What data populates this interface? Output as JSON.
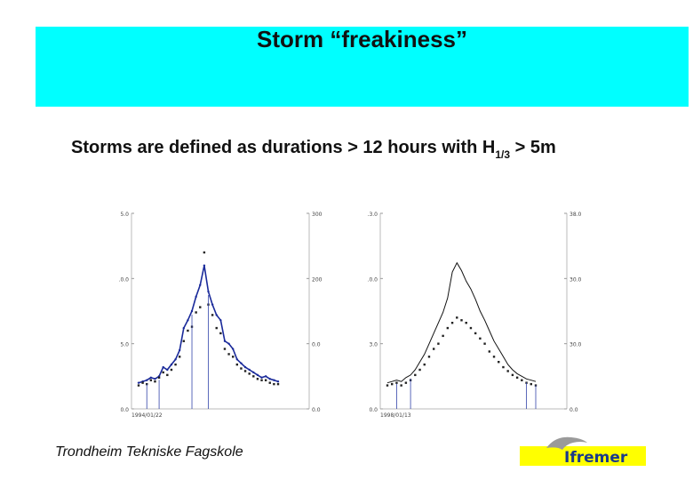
{
  "slide": {
    "title": "Storm “freakiness”",
    "subtitle_main": "Storms are defined as durations > 12 hours with ",
    "subtitle_sym": "H",
    "subtitle_sub": "1/3",
    "subtitle_tail": " > 5m",
    "footer": "Trondheim Tekniske Fagskole",
    "logo_text": "Ifremer",
    "colors": {
      "title_band": "#00ffff",
      "series_blue": "#1a2a9a",
      "logo_yellow": "#ffff00",
      "logo_text": "#1a3a8a"
    }
  },
  "chart_data": [
    {
      "type": "line",
      "panel": "left",
      "left_ticks": [
        "5.0",
        ".0.0",
        "5.0",
        "0.0"
      ],
      "right_ticks": [
        "300",
        "200",
        "0.0",
        "0.0"
      ],
      "x_label": "1994/01/22",
      "series": [
        {
          "color": "#1a2a9a",
          "values": [
            2.0,
            2.1,
            2.2,
            2.4,
            2.3,
            2.5,
            3.2,
            3.0,
            3.4,
            3.8,
            4.5,
            6.2,
            6.8,
            7.5,
            8.6,
            9.5,
            11.0,
            9.0,
            8.0,
            7.2,
            6.8,
            5.2,
            5.0,
            4.6,
            3.8,
            3.5,
            3.2,
            3.0,
            2.8,
            2.6,
            2.4,
            2.5,
            2.3,
            2.2,
            2.1
          ]
        },
        {
          "markers": true,
          "values": [
            1.8,
            2.0,
            1.9,
            2.2,
            2.1,
            2.4,
            2.8,
            2.6,
            3.0,
            3.4,
            4.0,
            5.2,
            6.0,
            6.3,
            7.4,
            7.8,
            12.0,
            8.0,
            7.2,
            6.2,
            5.8,
            4.6,
            4.2,
            4.0,
            3.4,
            3.1,
            2.9,
            2.7,
            2.5,
            2.3,
            2.2,
            2.2,
            2.0,
            1.9,
            1.9
          ]
        }
      ],
      "spikes": [
        2,
        5,
        13,
        17
      ]
    },
    {
      "type": "line",
      "panel": "right",
      "left_ticks": [
        ".3.0",
        ".0.0",
        "3.0",
        "0.0"
      ],
      "right_ticks": [
        "38.0",
        "30.0",
        "30.0",
        "0.0"
      ],
      "x_label": "1998/01/13",
      "series": [
        {
          "color": "#111111",
          "values": [
            2.0,
            2.1,
            2.2,
            2.1,
            2.4,
            2.6,
            3.0,
            3.6,
            4.2,
            5.0,
            5.8,
            6.6,
            7.4,
            8.5,
            10.5,
            11.2,
            10.6,
            9.8,
            9.2,
            8.4,
            7.5,
            6.8,
            6.0,
            5.2,
            4.6,
            4.0,
            3.4,
            3.0,
            2.7,
            2.5,
            2.3,
            2.2,
            2.1
          ]
        },
        {
          "markers": true,
          "values": [
            1.8,
            1.9,
            2.0,
            1.8,
            2.0,
            2.2,
            2.6,
            3.0,
            3.4,
            4.0,
            4.6,
            5.0,
            5.6,
            6.2,
            6.6,
            7.0,
            6.8,
            6.6,
            6.2,
            5.8,
            5.4,
            5.0,
            4.4,
            4.0,
            3.6,
            3.2,
            2.9,
            2.6,
            2.4,
            2.2,
            2.0,
            1.9,
            1.8
          ]
        }
      ],
      "spikes": [
        2,
        5,
        30,
        32
      ]
    }
  ]
}
